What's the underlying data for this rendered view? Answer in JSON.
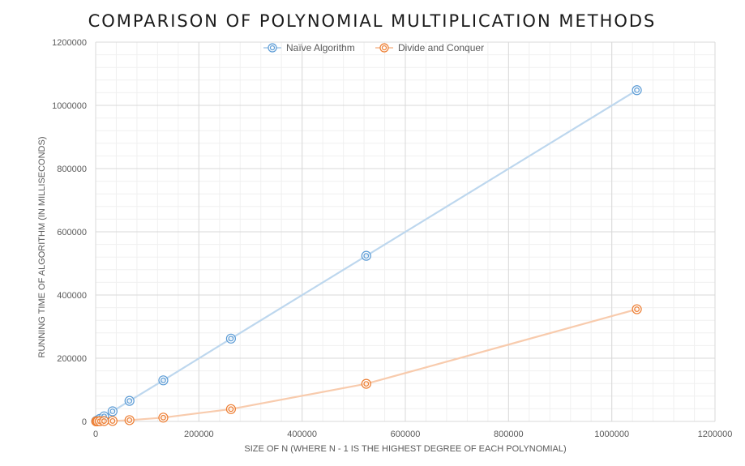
{
  "chart_data": {
    "type": "scatter",
    "title": "COMPARISON OF POLYNOMIAL MULTIPLICATION METHODS",
    "xlabel": "SIZE OF N (WHERE N - 1 IS THE HIGHEST DEGREE OF EACH POLYNOMIAL)",
    "ylabel": "RUNNING TIME OF ALGORITHM (IN MILLISECONDS)",
    "xlim": [
      0,
      1200000
    ],
    "ylim": [
      0,
      1200000
    ],
    "xticks": [
      0,
      200000,
      400000,
      600000,
      800000,
      1000000,
      1200000
    ],
    "yticks": [
      0,
      200000,
      400000,
      600000,
      800000,
      1000000,
      1200000
    ],
    "grid": true,
    "legend_position": "top",
    "series": [
      {
        "name": "Naïve Algorithm",
        "color": "#5b9bd5",
        "line_color": "#bdd7ee",
        "points": [
          {
            "x": 1024,
            "y": 1000
          },
          {
            "x": 2048,
            "y": 2000
          },
          {
            "x": 4096,
            "y": 4000
          },
          {
            "x": 8192,
            "y": 8000
          },
          {
            "x": 16384,
            "y": 16000
          },
          {
            "x": 32768,
            "y": 32000
          },
          {
            "x": 65536,
            "y": 65000
          },
          {
            "x": 131072,
            "y": 130000
          },
          {
            "x": 262144,
            "y": 262000
          },
          {
            "x": 524288,
            "y": 524000
          },
          {
            "x": 1048576,
            "y": 1048000
          }
        ]
      },
      {
        "name": "Divide and Conquer",
        "color": "#ed7d31",
        "line_color": "#f8cbad",
        "points": [
          {
            "x": 1024,
            "y": 50
          },
          {
            "x": 2048,
            "y": 150
          },
          {
            "x": 4096,
            "y": 400
          },
          {
            "x": 8192,
            "y": 700
          },
          {
            "x": 16384,
            "y": 1000
          },
          {
            "x": 32768,
            "y": 1500
          },
          {
            "x": 65536,
            "y": 4000
          },
          {
            "x": 131072,
            "y": 12000
          },
          {
            "x": 262144,
            "y": 39000
          },
          {
            "x": 524288,
            "y": 119000
          },
          {
            "x": 1048576,
            "y": 355000
          }
        ]
      }
    ]
  }
}
